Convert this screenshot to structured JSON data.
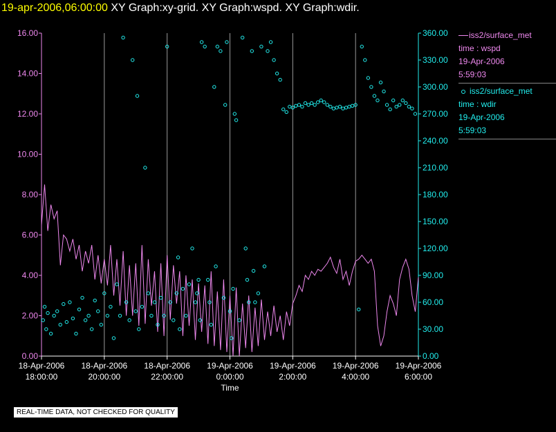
{
  "title": {
    "date": "19-apr-2006,06:00:00",
    "graphs": "XY Graph:xy-grid.  XY Graph:wspd.  XY Graph:wdir."
  },
  "legend": {
    "wspd": {
      "source": "iss2/surface_met",
      "var": "time : wspd",
      "date": "19-Apr-2006",
      "time": "5:59:03"
    },
    "wdir": {
      "source": "iss2/surface_met",
      "var": "time : wdir",
      "date": "19-Apr-2006",
      "time": "5:59:03"
    }
  },
  "quality_note": "REAL-TIME DATA, NOT CHECKED FOR QUALITY",
  "colors": {
    "wspd": "#ee88ee",
    "wdir": "#22eeee",
    "grid": "#9a9a9a",
    "axis": "#ffffff"
  },
  "chart_data": {
    "type": "line",
    "title": "XY Graph",
    "xlabel": "Time",
    "x_range_hours": [
      0,
      12
    ],
    "x_ticks": [
      {
        "hour": 0,
        "date": "18-Apr-2006",
        "time": "18:00:00"
      },
      {
        "hour": 2,
        "date": "18-Apr-2006",
        "time": "20:00:00"
      },
      {
        "hour": 4,
        "date": "18-Apr-2006",
        "time": "22:00:00"
      },
      {
        "hour": 6,
        "date": "19-Apr-2006",
        "time": "0:00:00"
      },
      {
        "hour": 8,
        "date": "19-Apr-2006",
        "time": "2:00:00"
      },
      {
        "hour": 10,
        "date": "19-Apr-2006",
        "time": "4:00:00"
      },
      {
        "hour": 12,
        "date": "19-Apr-2006",
        "time": "6:00:00"
      }
    ],
    "y_left": {
      "label": "wspd",
      "range": [
        0,
        16
      ],
      "ticks": [
        "0.00",
        "2.00",
        "4.00",
        "6.00",
        "8.00",
        "10.00",
        "12.00",
        "14.00",
        "16.00"
      ]
    },
    "y_right": {
      "label": "wdir",
      "range": [
        0,
        360
      ],
      "ticks": [
        "0.00",
        "30.00",
        "60.00",
        "90.00",
        "120.00",
        "150.00",
        "180.00",
        "210.00",
        "240.00",
        "270.00",
        "300.00",
        "330.00",
        "360.00"
      ]
    },
    "series": [
      {
        "name": "wspd",
        "style": "line",
        "axis": "left",
        "x": [
          0,
          0.1,
          0.2,
          0.3,
          0.4,
          0.5,
          0.6,
          0.7,
          0.8,
          0.9,
          1.0,
          1.1,
          1.2,
          1.3,
          1.4,
          1.5,
          1.6,
          1.7,
          1.8,
          1.9,
          2.0,
          2.1,
          2.2,
          2.3,
          2.4,
          2.5,
          2.6,
          2.7,
          2.8,
          2.9,
          3.0,
          3.1,
          3.2,
          3.3,
          3.4,
          3.5,
          3.6,
          3.7,
          3.8,
          3.9,
          4.0,
          4.1,
          4.2,
          4.3,
          4.4,
          4.5,
          4.6,
          4.7,
          4.8,
          4.9,
          5.0,
          5.1,
          5.2,
          5.3,
          5.4,
          5.5,
          5.6,
          5.7,
          5.8,
          5.9,
          6.0,
          6.1,
          6.2,
          6.3,
          6.4,
          6.5,
          6.6,
          6.7,
          6.8,
          6.9,
          7.0,
          7.1,
          7.2,
          7.3,
          7.4,
          7.5,
          7.6,
          7.7,
          7.8,
          7.9,
          8.0,
          8.1,
          8.2,
          8.3,
          8.4,
          8.5,
          8.6,
          8.7,
          8.8,
          8.9,
          9.0,
          9.1,
          9.2,
          9.3,
          9.4,
          9.5,
          9.6,
          9.7,
          9.8,
          9.9,
          10.0,
          10.1,
          10.2,
          10.3,
          10.4,
          10.5,
          10.6,
          10.7,
          10.8,
          10.9,
          11.0,
          11.1,
          11.2,
          11.3,
          11.4,
          11.5,
          11.6,
          11.7,
          11.8,
          11.9,
          12.0
        ],
        "values": [
          6.5,
          8.5,
          6.2,
          7.5,
          6.8,
          7.2,
          4.5,
          6.0,
          5.8,
          5.2,
          5.8,
          4.8,
          5.5,
          4.2,
          5.2,
          4.6,
          5.5,
          3.8,
          5.0,
          3.6,
          4.8,
          3.5,
          5.5,
          3.0,
          4.8,
          2.5,
          5.2,
          2.0,
          4.5,
          2.0,
          4.6,
          1.5,
          5.5,
          1.6,
          4.8,
          2.5,
          4.2,
          1.2,
          4.6,
          1.0,
          5.0,
          1.8,
          4.5,
          2.6,
          4.2,
          1.0,
          4.0,
          1.5,
          3.8,
          0.8,
          3.6,
          1.2,
          3.5,
          0.6,
          4.2,
          0.5,
          3.2,
          0.3,
          3.8,
          0.2,
          3.0,
          0.0,
          3.4,
          0.0,
          2.6,
          0.4,
          3.0,
          0.2,
          2.4,
          0.5,
          2.8,
          0.8,
          2.2,
          1.0,
          2.5,
          1.2,
          2.0,
          0.8,
          2.2,
          1.5,
          2.6,
          3.0,
          3.5,
          3.2,
          4.0,
          3.8,
          4.2,
          4.0,
          4.3,
          4.2,
          4.4,
          4.6,
          4.9,
          4.4,
          4.1,
          4.8,
          3.8,
          4.2,
          3.5,
          4.2,
          4.7,
          4.8,
          5.0,
          4.8,
          4.6,
          4.8,
          4.2,
          1.5,
          0.5,
          1.0,
          2.2,
          3.0,
          2.6,
          2.0,
          3.8,
          4.4,
          4.8,
          4.3,
          3.0,
          2.2,
          3.9
        ]
      },
      {
        "name": "wdir",
        "style": "circle-markers",
        "axis": "right",
        "x": [
          0.05,
          0.1,
          0.15,
          0.2,
          0.3,
          0.4,
          0.5,
          0.6,
          0.7,
          0.8,
          0.9,
          1.0,
          1.1,
          1.2,
          1.3,
          1.4,
          1.5,
          1.6,
          1.7,
          1.8,
          1.9,
          2.0,
          2.1,
          2.2,
          2.3,
          2.4,
          2.5,
          2.6,
          2.7,
          2.8,
          2.9,
          3.0,
          3.05,
          3.1,
          3.2,
          3.3,
          3.4,
          3.5,
          3.6,
          3.7,
          3.8,
          3.9,
          4.0,
          4.1,
          4.2,
          4.3,
          4.35,
          4.4,
          4.5,
          4.6,
          4.7,
          4.8,
          4.9,
          4.95,
          5.0,
          5.05,
          5.1,
          5.2,
          5.3,
          5.35,
          5.4,
          5.5,
          5.55,
          5.6,
          5.7,
          5.8,
          5.85,
          5.9,
          6.0,
          6.05,
          6.1,
          6.15,
          6.2,
          6.3,
          6.4,
          6.5,
          6.55,
          6.6,
          6.7,
          6.75,
          6.8,
          6.9,
          7.0,
          7.1,
          7.2,
          7.3,
          7.4,
          7.5,
          7.6,
          7.7,
          7.8,
          7.9,
          8.0,
          8.1,
          8.2,
          8.3,
          8.4,
          8.5,
          8.6,
          8.7,
          8.8,
          8.9,
          9.0,
          9.1,
          9.2,
          9.3,
          9.4,
          9.5,
          9.6,
          9.7,
          9.8,
          9.9,
          10.0,
          10.1,
          10.2,
          10.3,
          10.4,
          10.5,
          10.6,
          10.7,
          10.8,
          10.9,
          11.0,
          11.1,
          11.2,
          11.3,
          11.4,
          11.5,
          11.6,
          11.7,
          11.8,
          11.9
        ],
        "values": [
          40,
          55,
          30,
          48,
          25,
          45,
          50,
          35,
          58,
          38,
          60,
          42,
          25,
          52,
          65,
          40,
          45,
          30,
          62,
          50,
          35,
          70,
          45,
          55,
          20,
          80,
          45,
          355,
          60,
          40,
          330,
          50,
          290,
          30,
          55,
          210,
          70,
          45,
          60,
          35,
          65,
          45,
          345,
          60,
          40,
          70,
          110,
          30,
          75,
          45,
          80,
          120,
          60,
          70,
          85,
          40,
          350,
          345,
          85,
          60,
          35,
          300,
          100,
          345,
          340,
          65,
          280,
          350,
          50,
          20,
          75,
          270,
          263,
          40,
          355,
          120,
          85,
          60,
          340,
          95,
          60,
          70,
          345,
          100,
          340,
          350,
          330,
          315,
          308,
          275,
          272,
          278,
          277,
          279,
          280,
          278,
          282,
          280,
          282,
          280,
          283,
          285,
          283,
          280,
          278,
          276,
          277,
          278,
          276,
          277,
          278,
          279,
          280,
          52,
          345,
          330,
          310,
          300,
          290,
          285,
          305,
          295,
          280,
          275,
          285,
          278,
          280,
          285,
          282,
          278,
          276,
          270
        ]
      }
    ]
  }
}
